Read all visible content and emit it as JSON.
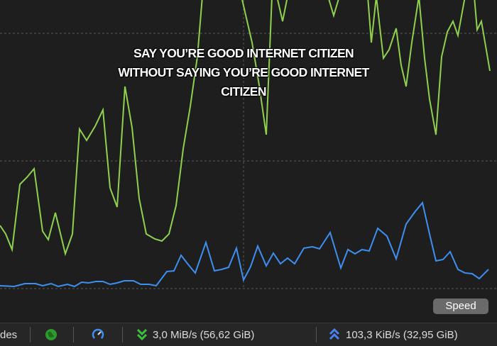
{
  "caption": "SAY YOU’RE GOOD INTERNET CITIZEN WITHOUT SAYING YOU’RE GOOD INTERNET CITIZEN",
  "speed_button": "Speed",
  "status_bar": {
    "left_truncated": "des",
    "download": "3,0 MiB/s (56,62 GiB)",
    "upload": "103,3 KiB/s (32,95 GiB)"
  }
}
